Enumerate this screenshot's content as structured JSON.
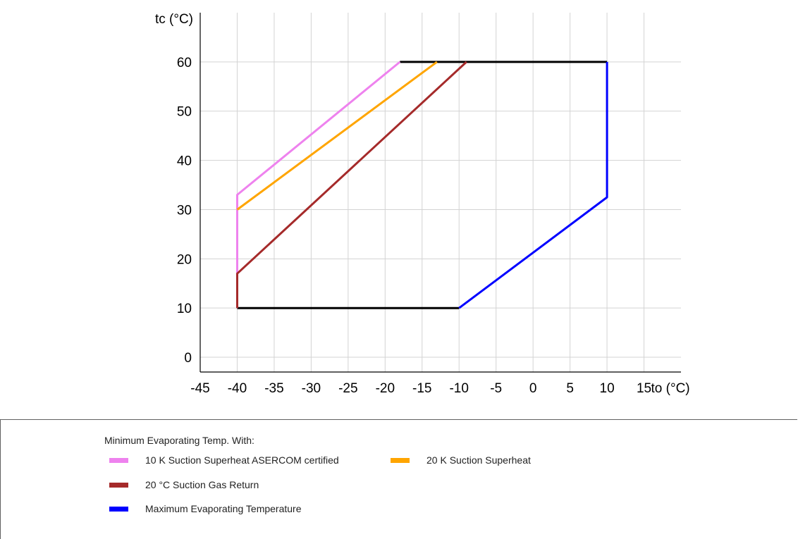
{
  "chart_data": {
    "type": "line",
    "xlabel": "to (°C)",
    "ylabel": "tc (°C)",
    "xlim": [
      -45,
      20
    ],
    "ylim": [
      -3,
      70
    ],
    "x_ticks": [
      "-45",
      "-40",
      "-35",
      "-30",
      "-25",
      "-20",
      "-15",
      "-10",
      "-5",
      "0",
      "5",
      "10",
      "15"
    ],
    "y_ticks": [
      "0",
      "10",
      "20",
      "30",
      "40",
      "50",
      "60"
    ],
    "x_tick_values": [
      -45,
      -40,
      -35,
      -30,
      -25,
      -20,
      -15,
      -10,
      -5,
      0,
      5,
      10,
      15
    ],
    "y_tick_values": [
      0,
      10,
      20,
      30,
      40,
      50,
      60
    ],
    "grid": true,
    "legend_position": "bottom",
    "series": [
      {
        "name": "",
        "color": "#000000",
        "segments": [
          [
            [
              -18,
              60
            ],
            [
              10,
              60
            ]
          ],
          [
            [
              -40,
              10
            ],
            [
              -10,
              10
            ]
          ]
        ]
      },
      {
        "name": "10 K Suction Superheat ASERCOM certified",
        "color": "#ee82ee",
        "segments": [
          [
            [
              -40,
              10
            ],
            [
              -40,
              33
            ],
            [
              -18,
              60
            ]
          ]
        ]
      },
      {
        "name": "20 K Suction Superheat",
        "color": "#ffa500",
        "segments": [
          [
            [
              -40,
              30
            ],
            [
              -13,
              60
            ]
          ]
        ]
      },
      {
        "name": "20 °C Suction Gas Return",
        "color": "#a52a2a",
        "segments": [
          [
            [
              -40,
              10
            ],
            [
              -40,
              17
            ],
            [
              -9,
              60
            ]
          ]
        ]
      },
      {
        "name": "Maximum Evaporating Temperature",
        "color": "#0000ff",
        "segments": [
          [
            [
              -10,
              10
            ],
            [
              10,
              32.5
            ],
            [
              10,
              60
            ]
          ]
        ]
      }
    ]
  },
  "legend": {
    "heading": "Minimum Evaporating Temp. With:",
    "items": [
      {
        "label": "10 K Suction Superheat ASERCOM certified",
        "color": "#ee82ee"
      },
      {
        "label": "20 K Suction Superheat",
        "color": "#ffa500"
      },
      {
        "label": "20 °C Suction Gas Return",
        "color": "#a52a2a"
      },
      {
        "label": "Maximum Evaporating Temperature",
        "color": "#0000ff"
      }
    ]
  }
}
